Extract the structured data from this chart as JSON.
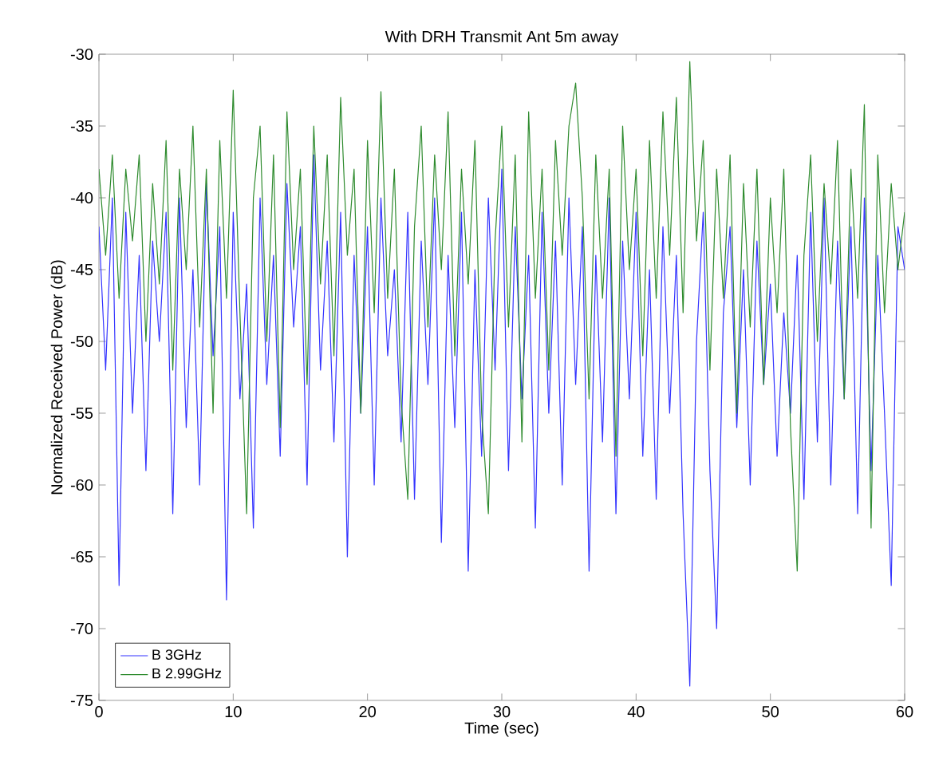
{
  "chart_data": {
    "type": "line",
    "title": "With DRH Transmit Ant 5m away",
    "xlabel": "Time (sec)",
    "ylabel": "Normalized Received Power (dB)",
    "x": [
      0,
      0.5,
      1,
      1.5,
      2,
      2.5,
      3,
      3.5,
      4,
      4.5,
      5,
      5.5,
      6,
      6.5,
      7,
      7.5,
      8,
      8.5,
      9,
      9.5,
      10,
      10.5,
      11,
      11.5,
      12,
      12.5,
      13,
      13.5,
      14,
      14.5,
      15,
      15.5,
      16,
      16.5,
      17,
      17.5,
      18,
      18.5,
      19,
      19.5,
      20,
      20.5,
      21,
      21.5,
      22,
      22.5,
      23,
      23.5,
      24,
      24.5,
      25,
      25.5,
      26,
      26.5,
      27,
      27.5,
      28,
      28.5,
      29,
      29.5,
      30,
      30.5,
      31,
      31.5,
      32,
      32.5,
      33,
      33.5,
      34,
      34.5,
      35,
      35.5,
      36,
      36.5,
      37,
      37.5,
      38,
      38.5,
      39,
      39.5,
      40,
      40.5,
      41,
      41.5,
      42,
      42.5,
      43,
      43.5,
      44,
      44.5,
      45,
      45.5,
      46,
      46.5,
      47,
      47.5,
      48,
      48.5,
      49,
      49.5,
      50,
      50.5,
      51,
      51.5,
      52,
      52.5,
      53,
      53.5,
      54,
      54.5,
      55,
      55.5,
      56,
      56.5,
      57,
      57.5,
      58,
      58.5,
      59,
      59.5,
      60
    ],
    "series": [
      {
        "name": "B 3GHz",
        "color": "#3333ff",
        "values": [
          -42,
          -52,
          -40,
          -67,
          -41,
          -55,
          -44,
          -59,
          -43,
          -50,
          -41,
          -62,
          -40,
          -56,
          -45,
          -60,
          -39,
          -51,
          -42,
          -68,
          -41,
          -54,
          -46,
          -63,
          -40,
          -53,
          -44,
          -58,
          -39,
          -49,
          -42,
          -60,
          -37,
          -52,
          -43,
          -57,
          -41,
          -65,
          -44,
          -55,
          -42,
          -60,
          -40,
          -51,
          -45,
          -57,
          -41,
          -61,
          -43,
          -53,
          -40,
          -64,
          -44,
          -56,
          -41,
          -66,
          -45,
          -58,
          -40,
          -52,
          -38,
          -59,
          -42,
          -54,
          -44,
          -63,
          -41,
          -55,
          -43,
          -60,
          -40,
          -53,
          -42,
          -66,
          -44,
          -57,
          -40,
          -62,
          -43,
          -54,
          -41,
          -58,
          -45,
          -61,
          -42,
          -55,
          -44,
          -62,
          -74,
          -50,
          -41,
          -59,
          -70,
          -48,
          -42,
          -56,
          -45,
          -60,
          -43,
          -53,
          -46,
          -58,
          -48,
          -55,
          -44,
          -61,
          -41,
          -57,
          -40,
          -60,
          -43,
          -54,
          -42,
          -62,
          -40,
          -59,
          -44,
          -55,
          -67,
          -42,
          -45
        ]
      },
      {
        "name": "B 2.99GHz",
        "color": "#2e8b2e",
        "values": [
          -38,
          -44,
          -37,
          -47,
          -38,
          -43,
          -37,
          -50,
          -39,
          -46,
          -36,
          -52,
          -38,
          -45,
          -35,
          -49,
          -38,
          -55,
          -36,
          -47,
          -32.5,
          -48,
          -62,
          -40,
          -35,
          -50,
          -37,
          -56,
          -34,
          -45,
          -38,
          -53,
          -35,
          -46,
          -37,
          -51,
          -33,
          -44,
          -38,
          -55,
          -36,
          -48,
          -32.6,
          -47,
          -38,
          -54,
          -61,
          -42,
          -35,
          -49,
          -37,
          -45,
          -34,
          -51,
          -38,
          -46,
          -36,
          -55,
          -62,
          -43,
          -35,
          -49,
          -37,
          -57,
          -34,
          -47,
          -38,
          -52,
          -36,
          -44,
          -35,
          -32,
          -40,
          -54,
          -37,
          -47,
          -38,
          -58,
          -35,
          -45,
          -38,
          -51,
          -36,
          -47,
          -34,
          -44,
          -33,
          -48,
          -30.5,
          -43,
          -36,
          -52,
          -38,
          -47,
          -37,
          -55,
          -39,
          -49,
          -38,
          -53,
          -40,
          -48,
          -38,
          -56,
          -66,
          -44,
          -37,
          -50,
          -39,
          -46,
          -36,
          -54,
          -38,
          -47,
          -33.5,
          -63,
          -37,
          -48,
          -39,
          -45,
          -41
        ]
      }
    ],
    "xlim": [
      0,
      60
    ],
    "ylim": [
      -75,
      -30
    ],
    "xticks": [
      0,
      10,
      20,
      30,
      40,
      50,
      60
    ],
    "yticks": [
      -75,
      -70,
      -65,
      -60,
      -55,
      -50,
      -45,
      -40,
      -35,
      -30
    ],
    "grid": false,
    "legend": "bottom left",
    "marker": "none",
    "line_style": "solid"
  }
}
